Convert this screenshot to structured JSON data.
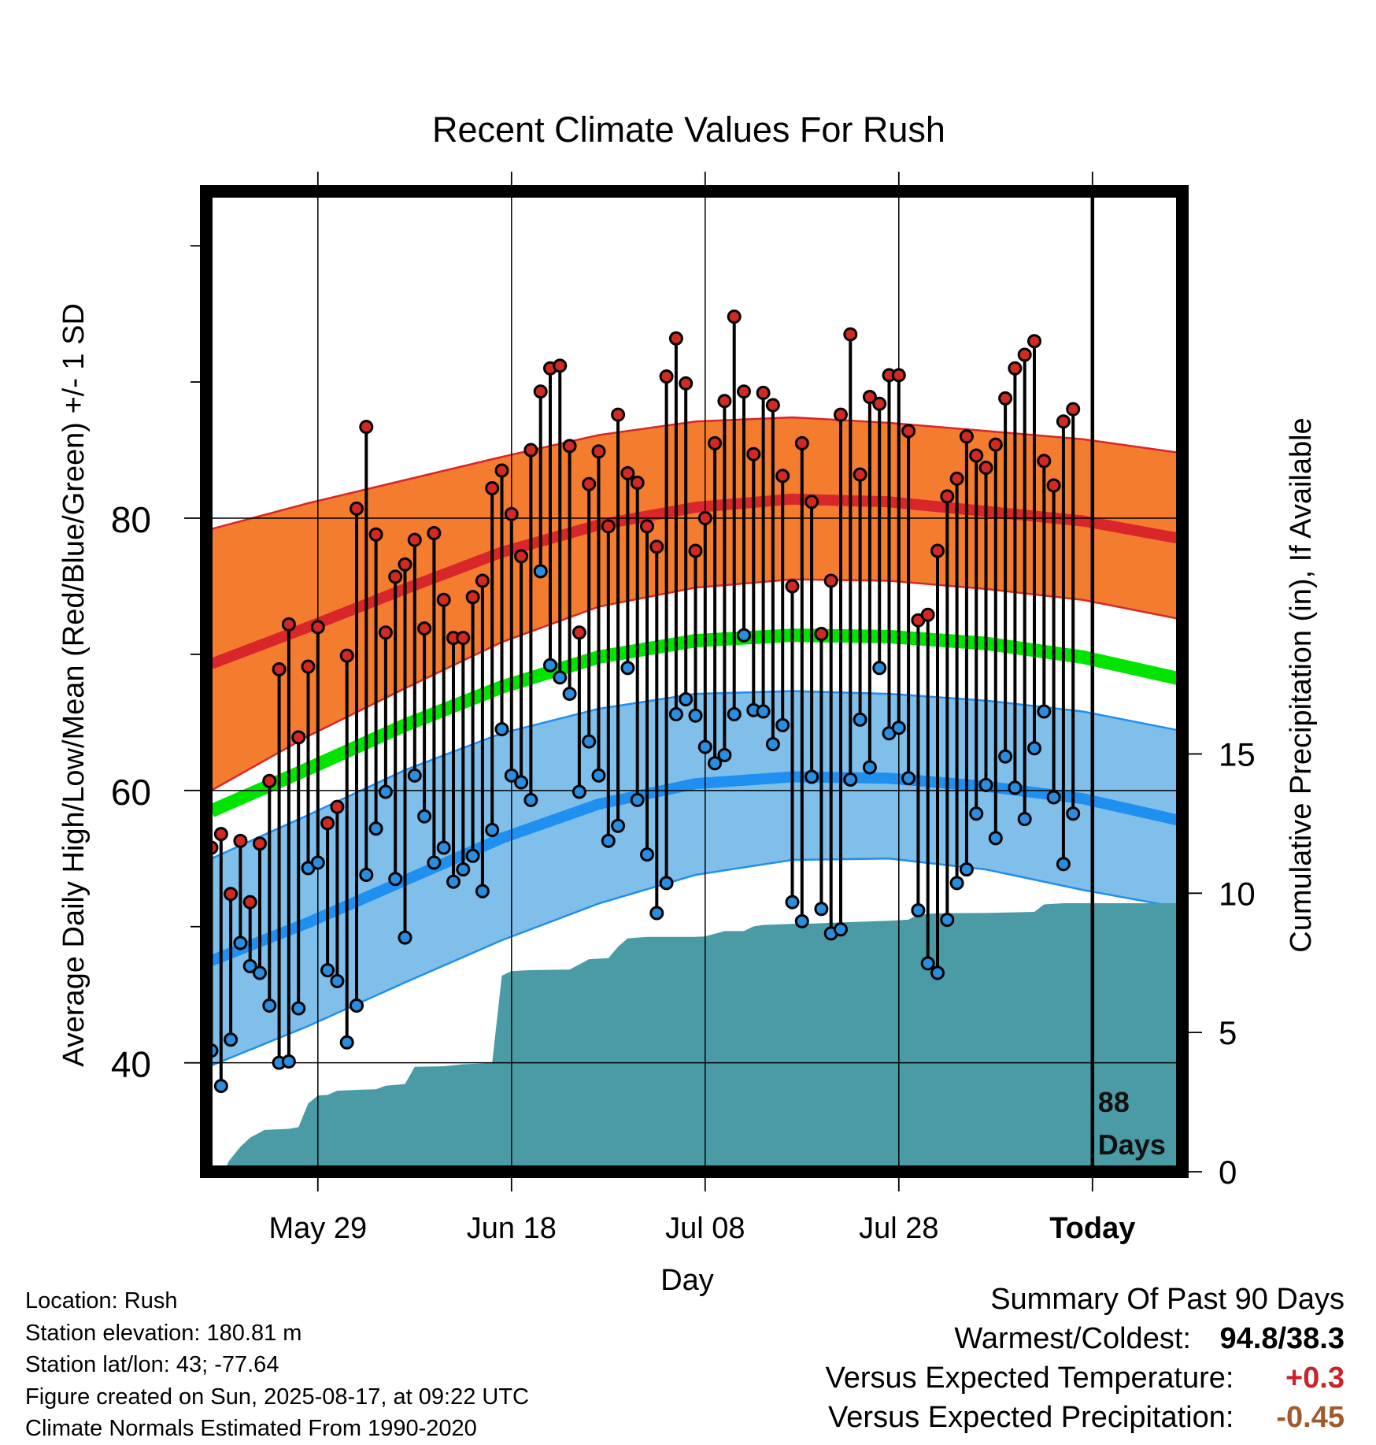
{
  "chart_data": {
    "type": "line",
    "title": "Recent Climate Values For Rush",
    "xlabel": "Day",
    "ylabel": "Average Daily High/Low/Mean (Red/Blue/Green) +/- 1 SD",
    "ylabel_right": "Cumulative Precipitation (in), If Available",
    "x_tick_labels": [
      "May 29",
      "Jun 18",
      "Jul 08",
      "Jul 28",
      "Today"
    ],
    "x_tick_days": [
      11,
      31,
      51,
      71,
      91
    ],
    "xlim": [
      0,
      100
    ],
    "ylim": [
      32,
      104
    ],
    "y_ticks_major": [
      40,
      60,
      80
    ],
    "y_ticks_minor": [
      50,
      70,
      90,
      100
    ],
    "y2lim": [
      0,
      35.2
    ],
    "y2_ticks": [
      0,
      5,
      10,
      15
    ],
    "grid": true,
    "today_day": 91,
    "days_annotation": [
      "88",
      "Days"
    ],
    "normals": {
      "high_mean": [
        [
          0,
          69.3
        ],
        [
          10,
          72.0
        ],
        [
          20,
          74.8
        ],
        [
          30,
          77.5
        ],
        [
          40,
          79.5
        ],
        [
          50,
          80.8
        ],
        [
          60,
          81.4
        ],
        [
          70,
          81.2
        ],
        [
          80,
          80.5
        ],
        [
          90,
          79.8
        ],
        [
          100,
          78.5
        ]
      ],
      "high_sd_upper": [
        [
          0,
          79.2
        ],
        [
          10,
          81.1
        ],
        [
          20,
          82.8
        ],
        [
          30,
          84.5
        ],
        [
          40,
          86.1
        ],
        [
          50,
          87.1
        ],
        [
          60,
          87.4
        ],
        [
          70,
          87.0
        ],
        [
          80,
          86.4
        ],
        [
          90,
          85.8
        ],
        [
          100,
          84.8
        ]
      ],
      "high_sd_lower": [
        [
          0,
          60.0
        ],
        [
          10,
          64.0
        ],
        [
          20,
          67.5
        ],
        [
          30,
          70.9
        ],
        [
          40,
          73.5
        ],
        [
          50,
          74.9
        ],
        [
          60,
          75.5
        ],
        [
          70,
          75.4
        ],
        [
          80,
          74.8
        ],
        [
          90,
          74.0
        ],
        [
          100,
          72.6
        ]
      ],
      "mean": [
        [
          0,
          58.5
        ],
        [
          10,
          61.6
        ],
        [
          20,
          64.8
        ],
        [
          30,
          67.6
        ],
        [
          40,
          69.8
        ],
        [
          50,
          71.0
        ],
        [
          60,
          71.4
        ],
        [
          70,
          71.3
        ],
        [
          80,
          70.8
        ],
        [
          90,
          69.8
        ],
        [
          100,
          68.2
        ]
      ],
      "low_mean": [
        [
          0,
          47.5
        ],
        [
          10,
          50.3
        ],
        [
          20,
          53.4
        ],
        [
          30,
          56.5
        ],
        [
          40,
          59.0
        ],
        [
          50,
          60.5
        ],
        [
          60,
          61.0
        ],
        [
          70,
          60.9
        ],
        [
          80,
          60.3
        ],
        [
          90,
          59.4
        ],
        [
          100,
          57.8
        ]
      ],
      "low_sd_upper": [
        [
          0,
          55.0
        ],
        [
          10,
          58.2
        ],
        [
          20,
          61.5
        ],
        [
          30,
          64.2
        ],
        [
          40,
          66.0
        ],
        [
          50,
          67.1
        ],
        [
          60,
          67.3
        ],
        [
          70,
          67.1
        ],
        [
          80,
          66.6
        ],
        [
          90,
          65.8
        ],
        [
          100,
          64.4
        ]
      ],
      "low_sd_lower": [
        [
          0,
          39.8
        ],
        [
          10,
          42.7
        ],
        [
          20,
          45.9
        ],
        [
          30,
          49.0
        ],
        [
          40,
          51.7
        ],
        [
          50,
          53.8
        ],
        [
          60,
          54.9
        ],
        [
          70,
          55.0
        ],
        [
          80,
          54.2
        ],
        [
          90,
          52.7
        ],
        [
          100,
          51.4
        ]
      ]
    },
    "daily_days": [
      0,
      1,
      2,
      3,
      4,
      5,
      6,
      7,
      8,
      9,
      10,
      11,
      12,
      13,
      14,
      15,
      16,
      17,
      18,
      19,
      20,
      21,
      22,
      23,
      24,
      25,
      26,
      27,
      28,
      29,
      30,
      31,
      32,
      33,
      34,
      35,
      36,
      37,
      38,
      39,
      40,
      41,
      42,
      43,
      44,
      45,
      46,
      47,
      48,
      49,
      50,
      51,
      52,
      53,
      54,
      55,
      56,
      57,
      58,
      59,
      60,
      61,
      62,
      63,
      64,
      65,
      66,
      67,
      68,
      69,
      70,
      71,
      72,
      73,
      74,
      75,
      76,
      77,
      78,
      79,
      80,
      81,
      82,
      83,
      84,
      85,
      86,
      87,
      88,
      89,
      90,
      91
    ],
    "daily_high": [
      55.8,
      56.8,
      52.4,
      56.3,
      51.8,
      56.1,
      60.7,
      68.9,
      72.2,
      63.9,
      69.1,
      72.0,
      57.6,
      58.8,
      69.9,
      80.7,
      86.7,
      78.8,
      71.6,
      75.7,
      76.6,
      78.4,
      71.9,
      78.9,
      74.0,
      71.2,
      71.2,
      74.2,
      75.4,
      82.2,
      83.5,
      80.3,
      77.2,
      85.0,
      89.3,
      91.0,
      91.2,
      85.3,
      71.6,
      82.5,
      84.9,
      79.4,
      87.6,
      83.3,
      82.6,
      79.4,
      77.9,
      90.4,
      93.2,
      89.9,
      77.6,
      80.0,
      85.5,
      88.6,
      94.8,
      89.3,
      84.7,
      89.2,
      88.3,
      83.1,
      75.0,
      85.5,
      81.2,
      71.5,
      75.4,
      87.6,
      93.5,
      83.2,
      88.9,
      88.4,
      90.5,
      90.5,
      86.4,
      72.5,
      72.9,
      77.6,
      81.6,
      82.9,
      86.0,
      84.6,
      83.7,
      85.4,
      88.8,
      91.0,
      92.0,
      93.0,
      84.2,
      82.4,
      87.1,
      88.0
    ],
    "daily_low": [
      40.9,
      38.3,
      41.7,
      48.8,
      47.1,
      46.6,
      44.2,
      40.0,
      40.1,
      44.0,
      54.3,
      54.7,
      46.8,
      46.0,
      41.5,
      44.2,
      53.8,
      57.2,
      59.9,
      53.5,
      49.2,
      61.1,
      58.1,
      54.7,
      55.8,
      53.3,
      54.2,
      55.2,
      52.6,
      57.1,
      64.5,
      61.1,
      60.6,
      59.3,
      76.1,
      69.2,
      68.3,
      67.1,
      59.9,
      63.6,
      61.1,
      56.3,
      57.4,
      69.0,
      59.3,
      55.3,
      51.0,
      53.2,
      65.6,
      66.7,
      65.5,
      63.2,
      62.0,
      62.6,
      65.6,
      71.4,
      65.9,
      65.8,
      63.4,
      64.8,
      51.8,
      50.4,
      61.0,
      51.3,
      49.5,
      49.8,
      60.8,
      65.2,
      61.7,
      69.0,
      64.2,
      64.6,
      60.9,
      51.2,
      47.3,
      46.6,
      50.5,
      53.2,
      54.2,
      58.3,
      60.4,
      56.5,
      62.5,
      60.2,
      57.9,
      63.1,
      65.8,
      59.5,
      54.6,
      58.3
    ],
    "precip_cumulative": [
      [
        0,
        0
      ],
      [
        1.3,
        0
      ],
      [
        1.8,
        0.38
      ],
      [
        3,
        0.9
      ],
      [
        4,
        1.22
      ],
      [
        5.5,
        1.5
      ],
      [
        8,
        1.54
      ],
      [
        9,
        1.6
      ],
      [
        10,
        2.45
      ],
      [
        11,
        2.74
      ],
      [
        12,
        2.76
      ],
      [
        13,
        2.91
      ],
      [
        15,
        2.94
      ],
      [
        17,
        2.96
      ],
      [
        18,
        3.09
      ],
      [
        20,
        3.15
      ],
      [
        21,
        3.77
      ],
      [
        24,
        3.79
      ],
      [
        26,
        3.86
      ],
      [
        29,
        3.9
      ],
      [
        30,
        7.04
      ],
      [
        31,
        7.2
      ],
      [
        33,
        7.24
      ],
      [
        37,
        7.26
      ],
      [
        39,
        7.63
      ],
      [
        41,
        7.67
      ],
      [
        42,
        8.08
      ],
      [
        43,
        8.38
      ],
      [
        45,
        8.43
      ],
      [
        50,
        8.43
      ],
      [
        51,
        8.45
      ],
      [
        53,
        8.64
      ],
      [
        55,
        8.64
      ],
      [
        56,
        8.81
      ],
      [
        57,
        8.86
      ],
      [
        60,
        8.9
      ],
      [
        62,
        8.91
      ],
      [
        65,
        8.95
      ],
      [
        70,
        9.01
      ],
      [
        72,
        9.05
      ],
      [
        73,
        9.23
      ],
      [
        75,
        9.28
      ],
      [
        80,
        9.29
      ],
      [
        85,
        9.33
      ],
      [
        86,
        9.6
      ],
      [
        88,
        9.64
      ],
      [
        100,
        9.64
      ]
    ]
  },
  "info": {
    "location": "Location: Rush",
    "elevation": "Station elevation: 180.81 m",
    "latlon": "Station lat/lon: 43; -77.64",
    "created": "Figure created on Sun, 2025-08-17, at 09:22 UTC",
    "normals": "Climate Normals Estimated From 1990-2020"
  },
  "summary": {
    "title": "Summary Of Past 90 Days",
    "warm_cold_label": "Warmest/Coldest:",
    "warm_cold_value": "94.8/38.3",
    "temp_label": "Versus Expected Temperature:",
    "temp_value": "+0.3",
    "precip_label": "Versus Expected Precipitation:",
    "precip_value": "-0.45",
    "colors": {
      "temp_value": "#c8242b",
      "precip_value": "#a05a2c"
    }
  },
  "colors": {
    "high_band": "#f47c2f",
    "high_line": "#d9262a",
    "mean_line": "#00e400",
    "low_band": "#7fbfea",
    "low_line": "#1f8ff0",
    "precip_fill": "#4a9ba5",
    "high_dot": "#d22a23",
    "low_dot": "#2a8ee0"
  }
}
